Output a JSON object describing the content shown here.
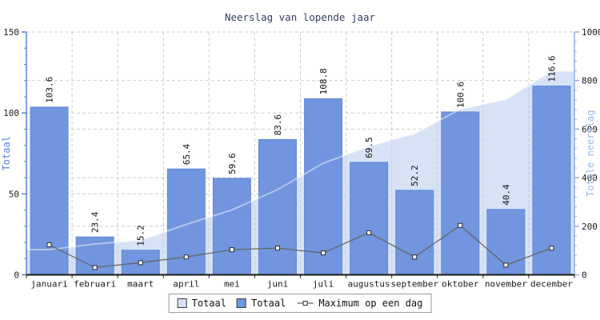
{
  "title": "Neerslag van lopende jaar",
  "legend": {
    "items": [
      {
        "label": "Totaal",
        "type": "area-swatch"
      },
      {
        "label": "Totaal",
        "type": "bar-swatch"
      },
      {
        "label": "Maximum op een dag",
        "type": "line-marker"
      }
    ]
  },
  "chart_data": {
    "type": "combo: cumulative area + bar + line",
    "title": "Neerslag van lopende jaar",
    "categories": [
      "januari",
      "februari",
      "maart",
      "april",
      "mei",
      "juni",
      "juli",
      "augustus",
      "september",
      "oktober",
      "november",
      "december"
    ],
    "series": [
      {
        "name": "Totaal",
        "type": "area",
        "axis": "right",
        "values": [
          103.6,
          127.0,
          142.2,
          207.6,
          267.2,
          350.8,
          459.6,
          529.1,
          581.3,
          681.9,
          722.3,
          838.9
        ],
        "note": "cumulative of monthly totals"
      },
      {
        "name": "Totaal",
        "type": "bar",
        "axis": "left",
        "values": [
          103.6,
          23.4,
          15.2,
          65.4,
          59.6,
          83.6,
          108.8,
          69.5,
          52.2,
          100.6,
          40.4,
          116.6
        ],
        "labels": [
          "103.6",
          "23.4",
          "15.2",
          "65.4",
          "59.6",
          "83.6",
          "108.8",
          "69.5",
          "52.2",
          "100.6",
          "40.4",
          "116.6"
        ]
      },
      {
        "name": "Maximum op een dag",
        "type": "line",
        "axis": "left",
        "estimated": true,
        "values": [
          18.5,
          4.5,
          7.5,
          11,
          15.5,
          16.5,
          13.5,
          26,
          11,
          30.5,
          6,
          16.5
        ]
      }
    ],
    "left_axis": {
      "label": "Totaal",
      "min": 0,
      "max": 150,
      "ticks": [
        0,
        50,
        100,
        150
      ],
      "minor_step": 10
    },
    "right_axis": {
      "label": "Totale neerslag",
      "min": 0,
      "max": 1000,
      "ticks": [
        0,
        200,
        400,
        600,
        800,
        1000
      ],
      "minor_step": 40
    },
    "grid": true,
    "legend_position": "bottom",
    "colors": {
      "bar": "#7195de",
      "bar_edge": "#6389d6",
      "area": "#d7e2f7",
      "line": "#666666",
      "marker_fill": "#ffffff",
      "marker_edge": "#2b2b2b",
      "grid": "#cccccc",
      "axis_left": "#5b82d8",
      "axis_right": "#8fafe4",
      "axis_bottom": "#1a1a1a",
      "label_left": "#5b82d8",
      "label_right": "#9db8e6",
      "tick_text": "#1a1a1a",
      "title": "#353e60"
    }
  }
}
